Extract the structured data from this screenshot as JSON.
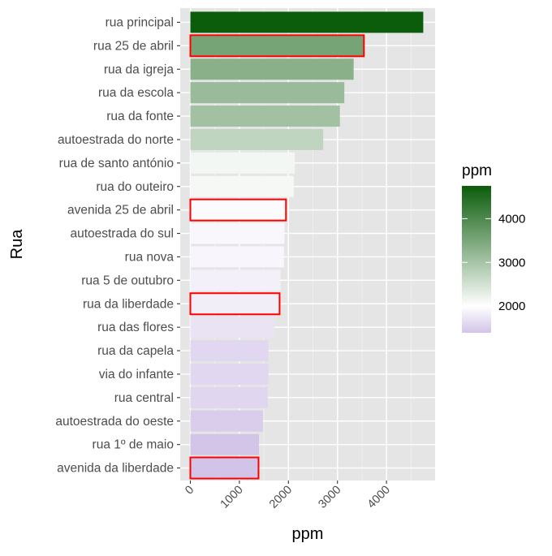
{
  "chart_data": {
    "type": "bar",
    "orientation": "horizontal",
    "xlabel": "ppm",
    "ylabel": "Rua",
    "xlim": [
      0,
      5000
    ],
    "x_ticks": [
      0,
      1000,
      2000,
      3000,
      4000
    ],
    "x_tick_labels": [
      "0",
      "1000",
      "2000",
      "3000",
      "4000"
    ],
    "grid": true,
    "categories": [
      "rua principal",
      "rua 25 de abril",
      "rua da igreja",
      "rua da escola",
      "rua da fonte",
      "autoestrada do norte",
      "rua de santo antónio",
      "rua do outeiro",
      "avenida 25 de abril",
      "autoestrada do sul",
      "rua nova",
      "rua 5 de outubro",
      "rua da liberdade",
      "rua das flores",
      "rua da capela",
      "via do infante",
      "rua central",
      "autoestrada do oeste",
      "rua 1º de maio",
      "avenida da liberdade"
    ],
    "values": [
      4750,
      3540,
      3330,
      3140,
      3050,
      2710,
      2130,
      2110,
      1950,
      1920,
      1910,
      1840,
      1820,
      1710,
      1590,
      1590,
      1580,
      1480,
      1400,
      1390
    ],
    "highlighted": [
      "rua 25 de abril",
      "avenida 25 de abril",
      "rua da liberdade",
      "avenida da liberdade"
    ],
    "highlight_color": "#ff0000",
    "legend": {
      "title": "ppm",
      "position": "right",
      "ticks": [
        2000,
        3000,
        4000
      ],
      "tick_labels": [
        "2000",
        "3000",
        "4000"
      ],
      "range": [
        1390,
        4750
      ],
      "midpoint": 2000,
      "colors": {
        "low": "#d2c4e8",
        "mid": "#ffffff",
        "high": "#0b5c0b"
      }
    },
    "panel_color": "#e5e5e5"
  }
}
